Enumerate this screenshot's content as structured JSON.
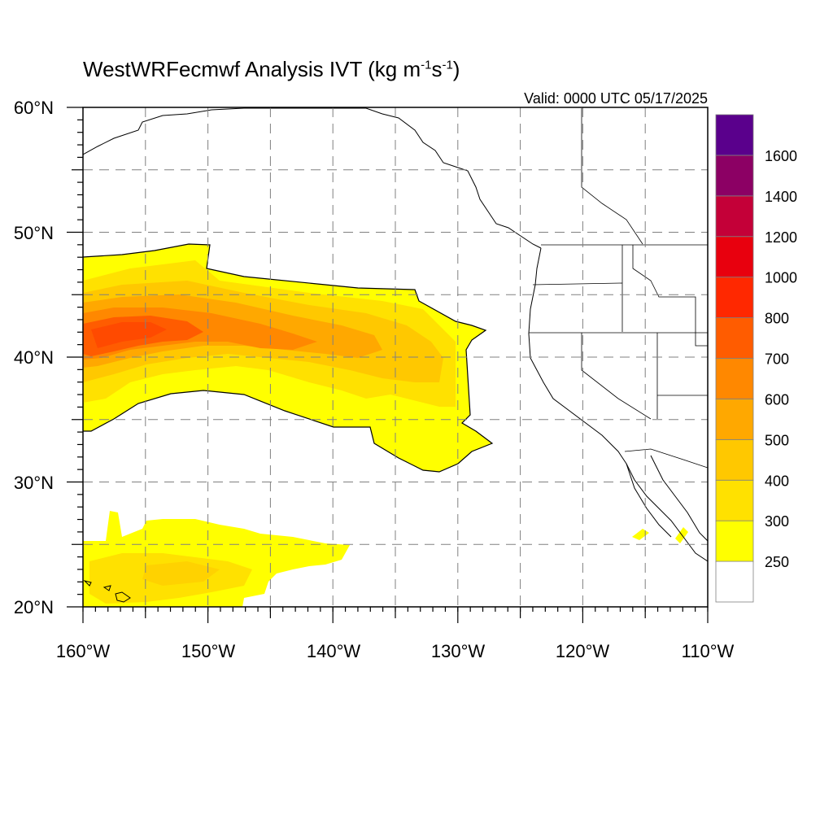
{
  "header": {
    "title_text": "WestWRFecmwf Analysis IVT (kg m",
    "title_exp1": "-1",
    "title_mid": "s",
    "title_exp2": "-1",
    "title_close": ")",
    "valid_text": "Valid: 0000 UTC 05/17/2025"
  },
  "map": {
    "lon_range": [
      -160,
      -110
    ],
    "lat_range": [
      20,
      60
    ],
    "lon_ticks": [
      "160°W",
      "150°W",
      "140°W",
      "130°W",
      "120°W",
      "110°W"
    ],
    "lat_ticks": [
      "20°N",
      "30°N",
      "40°N",
      "50°N",
      "60°N"
    ]
  },
  "colorbar": {
    "labels": [
      "250",
      "300",
      "400",
      "500",
      "600",
      "700",
      "800",
      "1000",
      "1200",
      "1400",
      "1600"
    ],
    "colors": [
      "#ffffff",
      "#ffff00",
      "#ffe100",
      "#ffc800",
      "#ffa800",
      "#ff8800",
      "#ff5c00",
      "#ff2800",
      "#e8000e",
      "#c40038",
      "#8c0064",
      "#5a008c"
    ]
  },
  "field": {
    "description_units": "kg m-1 s-1",
    "main_river": {
      "levels_colors": [
        "#ffff00",
        "#ffe100",
        "#ffc800",
        "#ffa800",
        "#ff8800",
        "#ff5c00"
      ]
    }
  }
}
